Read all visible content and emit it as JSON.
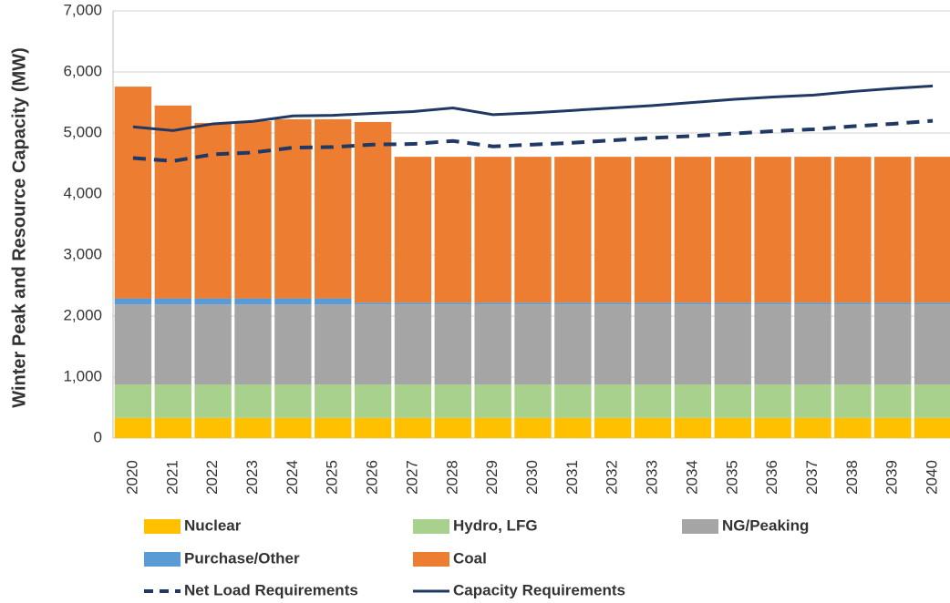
{
  "chart_data": {
    "type": "bar",
    "stacked": true,
    "y_label": "Winter Peak and Resource Capacity (MW)",
    "categories": [
      "2020",
      "2021",
      "2022",
      "2023",
      "2024",
      "2025",
      "2026",
      "2027",
      "2028",
      "2029",
      "2030",
      "2031",
      "2032",
      "2033",
      "2034",
      "2035",
      "2036",
      "2037",
      "2038",
      "2039",
      "2040"
    ],
    "ylim": [
      0,
      7000
    ],
    "yticks": [
      0,
      {
        "value": 1000,
        "label": "1,000"
      },
      {
        "value": 2000,
        "label": "2,000"
      },
      {
        "value": 3000,
        "label": "3,000"
      },
      {
        "value": 4000,
        "label": "4,000"
      },
      {
        "value": 5000,
        "label": "5,000"
      },
      {
        "value": 6000,
        "label": "6,000"
      },
      {
        "value": 7000,
        "label": "7,000"
      }
    ],
    "grid": true,
    "series": [
      {
        "name": "Nuclear",
        "color": "#FFC000",
        "values": [
          330,
          330,
          330,
          330,
          330,
          330,
          330,
          330,
          330,
          330,
          330,
          330,
          330,
          330,
          330,
          330,
          330,
          330,
          330,
          330,
          330
        ]
      },
      {
        "name": "Hydro, LFG",
        "color": "#A9D18E",
        "values": [
          550,
          550,
          550,
          550,
          550,
          550,
          550,
          550,
          550,
          550,
          550,
          550,
          550,
          550,
          550,
          550,
          550,
          550,
          550,
          550,
          550
        ]
      },
      {
        "name": "NG/Peaking",
        "color": "#A5A5A5",
        "values": [
          1310,
          1310,
          1310,
          1310,
          1310,
          1310,
          1310,
          1310,
          1310,
          1310,
          1310,
          1310,
          1310,
          1310,
          1310,
          1310,
          1310,
          1310,
          1310,
          1310,
          1310
        ]
      },
      {
        "name": "Purchase/Other",
        "color": "#5B9BD5",
        "values": [
          100,
          100,
          100,
          100,
          100,
          100,
          30,
          30,
          30,
          30,
          30,
          30,
          30,
          30,
          30,
          30,
          30,
          30,
          30,
          30,
          30
        ]
      },
      {
        "name": "Coal",
        "color": "#ED7D31",
        "values": [
          3470,
          3160,
          2875,
          2905,
          2935,
          2935,
          2960,
          2390,
          2390,
          2390,
          2390,
          2390,
          2390,
          2390,
          2390,
          2390,
          2390,
          2390,
          2390,
          2390,
          2390
        ]
      },
      {
        "name": "Net Load Requirements",
        "type": "line",
        "dashed": true,
        "color": "#203864",
        "values": [
          4590,
          4540,
          4650,
          4680,
          4760,
          4770,
          4810,
          4820,
          4870,
          4780,
          4810,
          4840,
          4880,
          4920,
          4950,
          4990,
          5030,
          5060,
          5110,
          5150,
          5200
        ]
      },
      {
        "name": "Capacity Requirements",
        "type": "line",
        "dashed": false,
        "color": "#203864",
        "values": [
          5100,
          5040,
          5150,
          5190,
          5280,
          5290,
          5320,
          5350,
          5410,
          5300,
          5330,
          5370,
          5410,
          5450,
          5500,
          5550,
          5590,
          5620,
          5680,
          5730,
          5770
        ]
      }
    ]
  }
}
